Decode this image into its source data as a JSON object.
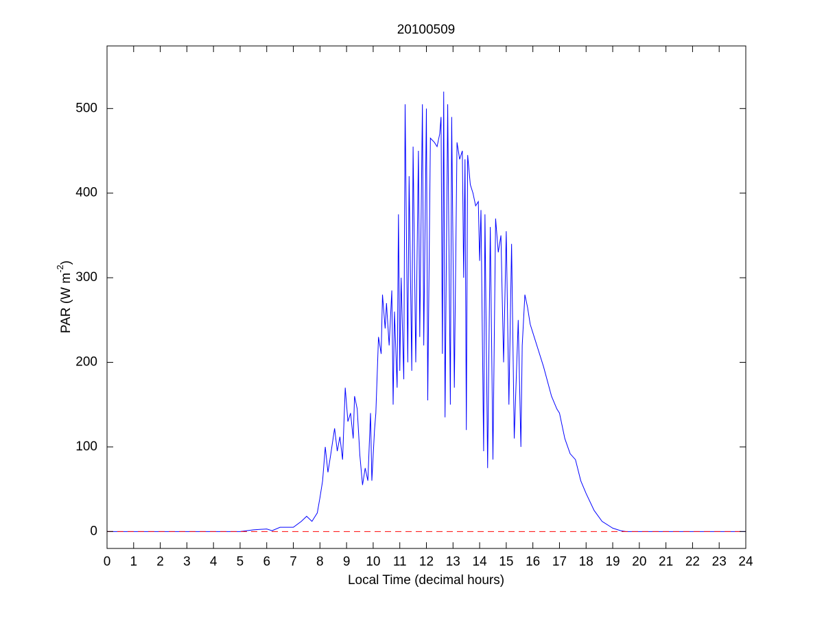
{
  "chart_data": {
    "type": "line",
    "title": "20100509",
    "xlabel": "Local Time (decimal hours)",
    "ylabel": [
      "PAR (W m",
      "-2",
      ")"
    ],
    "xlim": [
      0,
      24
    ],
    "ylim": [
      -20,
      574
    ],
    "xticks": [
      0,
      1,
      2,
      3,
      4,
      5,
      6,
      7,
      8,
      9,
      10,
      11,
      12,
      13,
      14,
      15,
      16,
      17,
      18,
      19,
      20,
      21,
      22,
      23,
      24
    ],
    "yticks": [
      0,
      100,
      200,
      300,
      400,
      500
    ],
    "grid": false,
    "series": [
      {
        "color": "#0000ff",
        "dash": "solid",
        "x": [
          0,
          5,
          5.5,
          6,
          6.2,
          6.5,
          7,
          7.3,
          7.5,
          7.7,
          7.9,
          8.0,
          8.1,
          8.2,
          8.3,
          8.4,
          8.55,
          8.65,
          8.75,
          8.85,
          8.95,
          9.05,
          9.15,
          9.25,
          9.3,
          9.4,
          9.5,
          9.6,
          9.7,
          9.8,
          9.9,
          9.95,
          10.05,
          10.1,
          10.2,
          10.3,
          10.35,
          10.45,
          10.5,
          10.6,
          10.7,
          10.75,
          10.8,
          10.9,
          10.95,
          11.0,
          11.05,
          11.15,
          11.2,
          11.3,
          11.35,
          11.45,
          11.5,
          11.6,
          11.7,
          11.75,
          11.85,
          11.9,
          12.0,
          12.05,
          12.15,
          12.3,
          12.4,
          12.5,
          12.55,
          12.6,
          12.65,
          12.7,
          12.8,
          12.9,
          12.95,
          13.05,
          13.15,
          13.25,
          13.35,
          13.4,
          13.45,
          13.5,
          13.55,
          13.65,
          13.75,
          13.85,
          13.95,
          14.0,
          14.05,
          14.15,
          14.2,
          14.3,
          14.4,
          14.5,
          14.6,
          14.7,
          14.8,
          14.9,
          15.0,
          15.1,
          15.2,
          15.3,
          15.45,
          15.55,
          15.6,
          15.7,
          15.8,
          15.9,
          16.1,
          16.4,
          16.7,
          16.9,
          17.0,
          17.2,
          17.4,
          17.6,
          17.8,
          18.0,
          18.3,
          18.6,
          19.0,
          19.3,
          19.5,
          24
        ],
        "values": [
          0,
          0,
          2,
          3,
          1,
          5,
          5,
          12,
          18,
          12,
          22,
          40,
          60,
          100,
          70,
          90,
          122,
          95,
          112,
          85,
          170,
          130,
          140,
          110,
          160,
          145,
          90,
          55,
          75,
          60,
          140,
          60,
          120,
          140,
          230,
          210,
          280,
          240,
          270,
          220,
          285,
          150,
          260,
          170,
          375,
          190,
          300,
          180,
          505,
          200,
          420,
          190,
          455,
          200,
          450,
          230,
          505,
          220,
          500,
          155,
          465,
          460,
          455,
          470,
          490,
          210,
          520,
          135,
          505,
          150,
          490,
          170,
          460,
          440,
          450,
          300,
          440,
          120,
          445,
          410,
          400,
          385,
          390,
          320,
          380,
          95,
          375,
          75,
          360,
          85,
          370,
          330,
          350,
          200,
          355,
          150,
          340,
          110,
          250,
          100,
          220,
          280,
          265,
          245,
          225,
          195,
          160,
          145,
          140,
          110,
          92,
          85,
          60,
          45,
          25,
          12,
          4,
          1,
          0,
          0
        ]
      },
      {
        "color": "#ff0000",
        "dash": "dashed",
        "x": [
          0,
          24
        ],
        "values": [
          0,
          0
        ]
      }
    ]
  }
}
